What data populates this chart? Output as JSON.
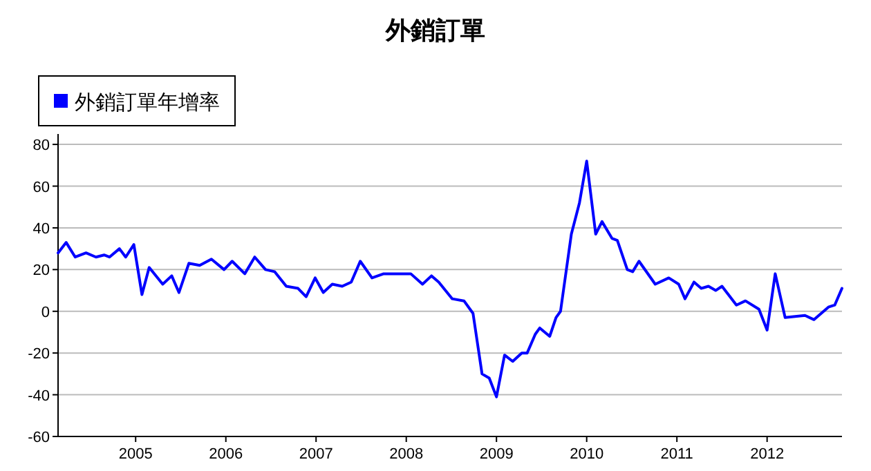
{
  "chart_data": {
    "type": "line",
    "title": "外銷訂單",
    "legend": "top left",
    "grid": "y",
    "marker": "none",
    "line_style": "solid",
    "xlim": [
      2004.14,
      2012.83
    ],
    "xticks": [
      2005,
      2006,
      2007,
      2008,
      2009,
      2010,
      2011,
      2012
    ],
    "ylim": [
      -60,
      85
    ],
    "yticks": [
      -60,
      -40,
      -20,
      0,
      20,
      40,
      60,
      80
    ],
    "series": [
      {
        "name": "外銷訂單年增率",
        "color": "#0000ff",
        "x": [
          2004.14,
          2004.23,
          2004.33,
          2004.45,
          2004.56,
          2004.65,
          2004.71,
          2004.82,
          2004.89,
          2004.98,
          2005.07,
          2005.15,
          2005.3,
          2005.4,
          2005.48,
          2005.59,
          2005.71,
          2005.84,
          2005.98,
          2006.07,
          2006.21,
          2006.32,
          2006.44,
          2006.54,
          2006.67,
          2006.8,
          2006.89,
          2006.99,
          2007.08,
          2007.18,
          2007.29,
          2007.39,
          2007.49,
          2007.62,
          2007.75,
          2007.9,
          2008.05,
          2008.18,
          2008.28,
          2008.36,
          2008.51,
          2008.64,
          2008.74,
          2008.84,
          2008.92,
          2009.0,
          2009.09,
          2009.18,
          2009.28,
          2009.34,
          2009.43,
          2009.48,
          2009.59,
          2009.66,
          2009.71,
          2009.83,
          2009.92,
          2010.0,
          2010.1,
          2010.17,
          2010.28,
          2010.34,
          2010.45,
          2010.51,
          2010.58,
          2010.76,
          2010.91,
          2011.02,
          2011.09,
          2011.19,
          2011.27,
          2011.35,
          2011.43,
          2011.5,
          2011.66,
          2011.76,
          2011.91,
          2012.0,
          2012.09,
          2012.2,
          2012.42,
          2012.52,
          2012.68,
          2012.75,
          2012.83
        ],
        "values": [
          28,
          33,
          26,
          28,
          26,
          27,
          26,
          30,
          26,
          32,
          8,
          21,
          13,
          17,
          9,
          23,
          22,
          25,
          20,
          24,
          18,
          26,
          20,
          19,
          12,
          11,
          7,
          16,
          9,
          13,
          12,
          14,
          24,
          16,
          18,
          18,
          18,
          13,
          17,
          14,
          6,
          5,
          -1,
          -30,
          -32,
          -41,
          -21,
          -24,
          -20,
          -20,
          -11,
          -8,
          -12,
          -3,
          0,
          37,
          52,
          72,
          37,
          43,
          35,
          34,
          20,
          19,
          24,
          13,
          16,
          13,
          6,
          14,
          11,
          12,
          10,
          12,
          3,
          5,
          1,
          -9,
          18,
          -3,
          -2,
          -4,
          2,
          3,
          11
        ]
      }
    ]
  }
}
